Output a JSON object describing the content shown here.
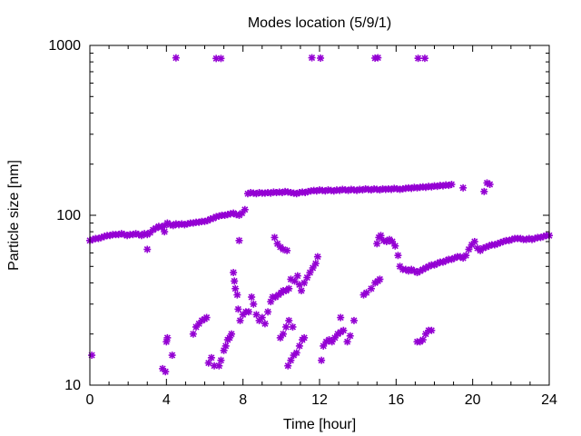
{
  "chart_data": {
    "type": "scatter",
    "title": "Modes location (5/9/1)",
    "xlabel": "Time [hour]",
    "ylabel": "Particle size [nm]",
    "xlim": [
      0,
      24
    ],
    "ylim": [
      10,
      1000
    ],
    "y_scale": "log",
    "x_ticks": [
      "0",
      "4",
      "8",
      "12",
      "16",
      "20",
      "24"
    ],
    "y_ticks": [
      "10",
      "100",
      "1000"
    ],
    "grid": false,
    "legend": "none",
    "marker_color": "#9400d3",
    "series": [
      {
        "points": [
          [
            0,
            71
          ],
          [
            0.15,
            72
          ],
          [
            0.3,
            73
          ],
          [
            0.45,
            73
          ],
          [
            0.6,
            74
          ],
          [
            0.75,
            75
          ],
          [
            0.9,
            76
          ],
          [
            1.05,
            76
          ],
          [
            1.2,
            77
          ],
          [
            1.35,
            77
          ],
          [
            1.5,
            77
          ],
          [
            1.65,
            78
          ],
          [
            1.8,
            77
          ],
          [
            1.95,
            76
          ],
          [
            2.1,
            77
          ],
          [
            2.25,
            77
          ],
          [
            2.4,
            78
          ],
          [
            2.55,
            77
          ],
          [
            2.7,
            76
          ],
          [
            2.85,
            78
          ],
          [
            3.0,
            77
          ],
          [
            3.15,
            79
          ],
          [
            3.3,
            82
          ],
          [
            3.45,
            84
          ],
          [
            3.6,
            86
          ],
          [
            3.75,
            85
          ],
          [
            3.9,
            87
          ],
          [
            4.05,
            90
          ],
          [
            4.2,
            88
          ],
          [
            4.35,
            87
          ],
          [
            4.5,
            89
          ],
          [
            4.65,
            88
          ],
          [
            4.8,
            89
          ],
          [
            4.95,
            88
          ],
          [
            5.1,
            89
          ],
          [
            5.25,
            90
          ],
          [
            5.4,
            90
          ],
          [
            5.55,
            91
          ],
          [
            5.7,
            91
          ],
          [
            5.85,
            92
          ],
          [
            6.0,
            92
          ],
          [
            6.15,
            93
          ],
          [
            6.3,
            95
          ],
          [
            6.45,
            96
          ],
          [
            6.6,
            98
          ],
          [
            6.75,
            99
          ],
          [
            6.9,
            100
          ],
          [
            7.05,
            100
          ],
          [
            7.2,
            101
          ],
          [
            7.35,
            102
          ],
          [
            7.5,
            103
          ],
          [
            7.65,
            101
          ],
          [
            7.8,
            100
          ],
          [
            7.95,
            103
          ],
          [
            8.1,
            108
          ],
          [
            8.25,
            134
          ],
          [
            8.4,
            136
          ],
          [
            8.55,
            135
          ],
          [
            8.7,
            134
          ],
          [
            8.85,
            136
          ],
          [
            9.0,
            135
          ],
          [
            9.15,
            135
          ],
          [
            9.3,
            136
          ],
          [
            9.45,
            135
          ],
          [
            9.6,
            137
          ],
          [
            9.75,
            136
          ],
          [
            9.9,
            137
          ],
          [
            10.05,
            136
          ],
          [
            10.2,
            138
          ],
          [
            10.35,
            137
          ],
          [
            10.5,
            136
          ],
          [
            10.65,
            135
          ],
          [
            10.8,
            134
          ],
          [
            10.95,
            136
          ],
          [
            11.1,
            137
          ],
          [
            11.25,
            136
          ],
          [
            11.4,
            138
          ],
          [
            11.55,
            139
          ],
          [
            11.7,
            140
          ],
          [
            11.85,
            139
          ],
          [
            12.0,
            141
          ],
          [
            12.15,
            140
          ],
          [
            12.3,
            139
          ],
          [
            12.45,
            141
          ],
          [
            12.6,
            140
          ],
          [
            12.75,
            139
          ],
          [
            12.9,
            141
          ],
          [
            13.05,
            140
          ],
          [
            13.2,
            142
          ],
          [
            13.35,
            141
          ],
          [
            13.5,
            140
          ],
          [
            13.65,
            142
          ],
          [
            13.8,
            141
          ],
          [
            13.95,
            140
          ],
          [
            14.1,
            142
          ],
          [
            14.25,
            141
          ],
          [
            14.4,
            143
          ],
          [
            14.55,
            142
          ],
          [
            14.7,
            141
          ],
          [
            14.85,
            143
          ],
          [
            15.0,
            142
          ],
          [
            15.15,
            141
          ],
          [
            15.3,
            143
          ],
          [
            15.45,
            142
          ],
          [
            15.6,
            143
          ],
          [
            15.75,
            142
          ],
          [
            15.9,
            144
          ],
          [
            16.05,
            143
          ],
          [
            16.2,
            142
          ],
          [
            16.35,
            143
          ],
          [
            16.5,
            144
          ],
          [
            16.65,
            145
          ],
          [
            16.8,
            144
          ],
          [
            16.95,
            146
          ],
          [
            17.1,
            145
          ],
          [
            17.25,
            146
          ],
          [
            17.4,
            147
          ],
          [
            17.55,
            146
          ],
          [
            17.7,
            148
          ],
          [
            17.85,
            147
          ],
          [
            18.0,
            149
          ],
          [
            18.15,
            148
          ],
          [
            18.3,
            150
          ],
          [
            18.45,
            149
          ],
          [
            18.6,
            151
          ],
          [
            18.75,
            150
          ],
          [
            18.9,
            152
          ],
          [
            19.5,
            145
          ],
          [
            20.6,
            138
          ],
          [
            20.75,
            155
          ],
          [
            20.9,
            152
          ],
          [
            4.5,
            845
          ],
          [
            6.6,
            838
          ],
          [
            6.85,
            838
          ],
          [
            11.6,
            846
          ],
          [
            12.05,
            842
          ],
          [
            14.9,
            842
          ],
          [
            15.05,
            846
          ],
          [
            17.15,
            840
          ],
          [
            17.5,
            840
          ],
          [
            0.1,
            15
          ],
          [
            3.0,
            63
          ],
          [
            3.8,
            12.5
          ],
          [
            3.95,
            12
          ],
          [
            4.0,
            18
          ],
          [
            4.05,
            19
          ],
          [
            4.3,
            15
          ],
          [
            3.9,
            80
          ],
          [
            5.4,
            20
          ],
          [
            5.55,
            22
          ],
          [
            5.7,
            23
          ],
          [
            5.85,
            24
          ],
          [
            6.0,
            24.5
          ],
          [
            6.1,
            25
          ],
          [
            6.2,
            13.5
          ],
          [
            6.35,
            14.5
          ],
          [
            6.5,
            13
          ],
          [
            6.75,
            13
          ],
          [
            6.85,
            14
          ],
          [
            7.0,
            16
          ],
          [
            7.1,
            17
          ],
          [
            7.2,
            18.5
          ],
          [
            7.3,
            19
          ],
          [
            7.4,
            20
          ],
          [
            7.5,
            46
          ],
          [
            7.55,
            41
          ],
          [
            7.6,
            37
          ],
          [
            7.7,
            34
          ],
          [
            7.75,
            28
          ],
          [
            7.85,
            24
          ],
          [
            7.8,
            71
          ],
          [
            8.0,
            26
          ],
          [
            8.15,
            27
          ],
          [
            8.3,
            27
          ],
          [
            8.45,
            33
          ],
          [
            8.55,
            30
          ],
          [
            8.7,
            26
          ],
          [
            8.85,
            24
          ],
          [
            9.0,
            25
          ],
          [
            9.15,
            23
          ],
          [
            9.3,
            27
          ],
          [
            9.45,
            31
          ],
          [
            9.55,
            33
          ],
          [
            9.7,
            33
          ],
          [
            9.85,
            34
          ],
          [
            10.0,
            35
          ],
          [
            10.1,
            36
          ],
          [
            10.25,
            36
          ],
          [
            10.4,
            37
          ],
          [
            9.65,
            74
          ],
          [
            9.8,
            68
          ],
          [
            9.95,
            65
          ],
          [
            10.1,
            63
          ],
          [
            10.3,
            62
          ],
          [
            9.95,
            19
          ],
          [
            10.1,
            20
          ],
          [
            10.25,
            22
          ],
          [
            10.4,
            24
          ],
          [
            10.5,
            42
          ],
          [
            10.6,
            22
          ],
          [
            10.35,
            13
          ],
          [
            10.5,
            14
          ],
          [
            10.65,
            15
          ],
          [
            10.8,
            15.5
          ],
          [
            10.95,
            17
          ],
          [
            11.1,
            18.5
          ],
          [
            11.2,
            19
          ],
          [
            10.7,
            41
          ],
          [
            10.85,
            44
          ],
          [
            10.95,
            39
          ],
          [
            11.05,
            36
          ],
          [
            11.2,
            40
          ],
          [
            11.35,
            43
          ],
          [
            11.5,
            46
          ],
          [
            11.65,
            49
          ],
          [
            11.8,
            52
          ],
          [
            11.9,
            57
          ],
          [
            12.1,
            14
          ],
          [
            12.2,
            17
          ],
          [
            12.35,
            18
          ],
          [
            12.5,
            18.5
          ],
          [
            12.65,
            18
          ],
          [
            12.8,
            19
          ],
          [
            12.95,
            20
          ],
          [
            13.1,
            20.5
          ],
          [
            13.25,
            21
          ],
          [
            13.1,
            25
          ],
          [
            13.45,
            18
          ],
          [
            13.6,
            19.5
          ],
          [
            13.8,
            24
          ],
          [
            14.3,
            34
          ],
          [
            14.45,
            35
          ],
          [
            14.7,
            37
          ],
          [
            14.9,
            40
          ],
          [
            15.05,
            41
          ],
          [
            15.15,
            42
          ],
          [
            15.0,
            68
          ],
          [
            15.1,
            74
          ],
          [
            15.2,
            76
          ],
          [
            15.35,
            71
          ],
          [
            15.5,
            70
          ],
          [
            15.65,
            72
          ],
          [
            15.8,
            70
          ],
          [
            15.95,
            66
          ],
          [
            16.1,
            58
          ],
          [
            16.2,
            50
          ],
          [
            16.35,
            48
          ],
          [
            16.5,
            48
          ],
          [
            16.65,
            47
          ],
          [
            16.8,
            48
          ],
          [
            16.95,
            47
          ],
          [
            17.1,
            46
          ],
          [
            17.25,
            47
          ],
          [
            17.4,
            48
          ],
          [
            17.55,
            49
          ],
          [
            17.7,
            50
          ],
          [
            17.85,
            51
          ],
          [
            18.0,
            51
          ],
          [
            18.15,
            52
          ],
          [
            18.3,
            53
          ],
          [
            18.45,
            53
          ],
          [
            18.6,
            54
          ],
          [
            18.75,
            55
          ],
          [
            18.9,
            55
          ],
          [
            19.05,
            56
          ],
          [
            19.2,
            57
          ],
          [
            19.35,
            57
          ],
          [
            19.5,
            56
          ],
          [
            19.65,
            58
          ],
          [
            19.8,
            63
          ],
          [
            19.95,
            67
          ],
          [
            20.1,
            70
          ],
          [
            20.25,
            64
          ],
          [
            20.4,
            62
          ],
          [
            20.55,
            64
          ],
          [
            20.7,
            65
          ],
          [
            20.85,
            66
          ],
          [
            21.0,
            67
          ],
          [
            21.15,
            67
          ],
          [
            21.3,
            68
          ],
          [
            21.45,
            69
          ],
          [
            21.6,
            70
          ],
          [
            21.75,
            71
          ],
          [
            21.9,
            71
          ],
          [
            22.05,
            72
          ],
          [
            22.2,
            73
          ],
          [
            22.35,
            73
          ],
          [
            22.5,
            73
          ],
          [
            22.65,
            72
          ],
          [
            22.8,
            72
          ],
          [
            22.95,
            73
          ],
          [
            23.1,
            72
          ],
          [
            23.25,
            73
          ],
          [
            23.4,
            74
          ],
          [
            23.55,
            74
          ],
          [
            23.7,
            75
          ],
          [
            23.85,
            76
          ],
          [
            24.0,
            76
          ],
          [
            17.1,
            18
          ],
          [
            17.25,
            18
          ],
          [
            17.4,
            18.5
          ],
          [
            17.55,
            20
          ],
          [
            17.7,
            21
          ],
          [
            17.85,
            21
          ]
        ]
      }
    ]
  }
}
